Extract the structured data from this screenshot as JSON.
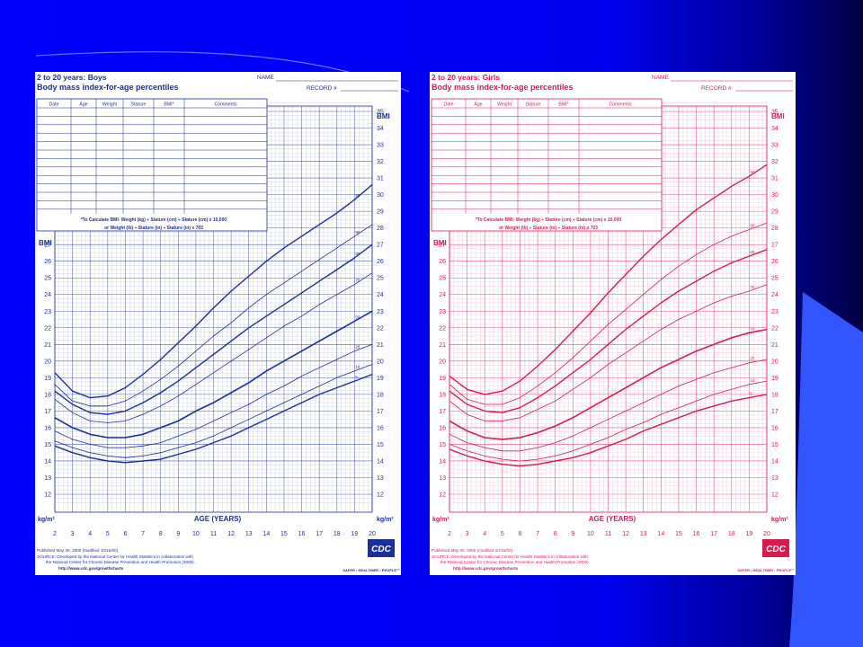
{
  "slide": {
    "background_color": "#0000ff",
    "accent_color": "#3355ff"
  },
  "chart_data": [
    {
      "type": "line",
      "title": "2 to 20 years: Boys",
      "subtitle": "Body mass index-for-age percentiles",
      "color": "#1a2f9a",
      "name_label": "NAME",
      "record_label": "RECORD #",
      "table_headers": [
        "Date",
        "Age",
        "Weight",
        "Stature",
        "BMI*",
        "Comments"
      ],
      "bmi_note_1": "*To Calculate BMI: Weight (kg) ÷ Stature (cm) ÷ Stature (cm) x 10,000",
      "bmi_note_2": "or Weight (lb) ÷ Stature (in) ÷ Stature (in) x 703",
      "ylabel": "BMI",
      "unit_label": "kg/m²",
      "xlabel": "AGE (YEARS)",
      "xlim": [
        2,
        20
      ],
      "ylim": [
        12,
        35
      ],
      "x_ticks": [
        2,
        3,
        4,
        5,
        6,
        7,
        8,
        9,
        10,
        11,
        12,
        13,
        14,
        15,
        16,
        17,
        18,
        19,
        20
      ],
      "x": [
        2,
        3,
        4,
        5,
        6,
        7,
        8,
        9,
        10,
        11,
        12,
        13,
        14,
        15,
        16,
        17,
        18,
        19,
        20
      ],
      "series": [
        {
          "name": "95",
          "values": [
            19.3,
            18.2,
            17.8,
            17.9,
            18.4,
            19.2,
            20.1,
            21.1,
            22.1,
            23.2,
            24.2,
            25.1,
            26.0,
            26.8,
            27.5,
            28.2,
            28.9,
            29.7,
            30.6
          ]
        },
        {
          "name": "90",
          "values": [
            18.6,
            17.6,
            17.3,
            17.3,
            17.6,
            18.2,
            18.9,
            19.7,
            20.6,
            21.5,
            22.3,
            23.2,
            24.0,
            24.7,
            25.4,
            26.1,
            26.8,
            27.5,
            28.2
          ]
        },
        {
          "name": "85",
          "values": [
            18.2,
            17.4,
            16.9,
            16.8,
            17.0,
            17.5,
            18.1,
            18.8,
            19.6,
            20.4,
            21.2,
            22.0,
            22.7,
            23.4,
            24.1,
            24.8,
            25.5,
            26.2,
            27.0
          ]
        },
        {
          "name": "75",
          "values": [
            17.7,
            16.9,
            16.4,
            16.3,
            16.4,
            16.8,
            17.3,
            17.9,
            18.6,
            19.3,
            20.0,
            20.7,
            21.4,
            22.1,
            22.7,
            23.4,
            24.0,
            24.6,
            25.3
          ]
        },
        {
          "name": "50",
          "values": [
            16.6,
            16.0,
            15.6,
            15.4,
            15.4,
            15.6,
            16.0,
            16.4,
            17.0,
            17.5,
            18.1,
            18.7,
            19.4,
            20.0,
            20.6,
            21.2,
            21.8,
            22.4,
            23.0
          ]
        },
        {
          "name": "25",
          "values": [
            15.8,
            15.3,
            15.0,
            14.8,
            14.8,
            14.9,
            15.1,
            15.5,
            15.9,
            16.4,
            16.9,
            17.4,
            18.0,
            18.5,
            19.1,
            19.6,
            20.1,
            20.6,
            21.0
          ]
        },
        {
          "name": "10",
          "values": [
            15.2,
            14.8,
            14.5,
            14.3,
            14.2,
            14.3,
            14.5,
            14.8,
            15.1,
            15.5,
            16.0,
            16.5,
            17.0,
            17.5,
            18.0,
            18.5,
            19.0,
            19.4,
            19.8
          ]
        },
        {
          "name": "5",
          "values": [
            14.9,
            14.5,
            14.2,
            14.0,
            13.9,
            14.0,
            14.1,
            14.4,
            14.7,
            15.1,
            15.5,
            16.0,
            16.5,
            17.0,
            17.5,
            18.0,
            18.4,
            18.8,
            19.2
          ]
        }
      ],
      "published": "Published May 30, 2000 (modified 10/16/00).",
      "source_1": "SOURCE: Developed by the National Center for Health Statistics in collaboration with",
      "source_2": "the National Center for Chronic Disease Prevention and Health Promotion (2000).",
      "source_3": "http://www.cdc.gov/growthcharts",
      "logo_text": "CDC",
      "tagline": "SAFER • HEALTHIER • PEOPLE™"
    },
    {
      "type": "line",
      "title": "2 to 20 years: Girls",
      "subtitle": "Body mass index-for-age percentiles",
      "color": "#d81b4f",
      "name_label": "NAME",
      "record_label": "RECORD #",
      "table_headers": [
        "Date",
        "Age",
        "Weight",
        "Stature",
        "BMI*",
        "Comments"
      ],
      "bmi_note_1": "*To Calculate BMI: Weight (kg) ÷ Stature (cm) ÷ Stature (cm) x 10,000",
      "bmi_note_2": "or Weight (lb) ÷ Stature (in) ÷ Stature (in) x 703",
      "ylabel": "BMI",
      "unit_label": "kg/m²",
      "xlabel": "AGE (YEARS)",
      "xlim": [
        2,
        20
      ],
      "ylim": [
        12,
        35
      ],
      "x_ticks": [
        2,
        3,
        4,
        5,
        6,
        7,
        8,
        9,
        10,
        11,
        12,
        13,
        14,
        15,
        16,
        17,
        18,
        19,
        20
      ],
      "x": [
        2,
        3,
        4,
        5,
        6,
        7,
        8,
        9,
        10,
        11,
        12,
        13,
        14,
        15,
        16,
        17,
        18,
        19,
        20
      ],
      "series": [
        {
          "name": "95",
          "values": [
            19.1,
            18.3,
            18.0,
            18.2,
            18.8,
            19.7,
            20.7,
            21.8,
            22.9,
            24.1,
            25.2,
            26.3,
            27.3,
            28.2,
            29.1,
            29.8,
            30.5,
            31.1,
            31.8
          ]
        },
        {
          "name": "90",
          "values": [
            18.6,
            17.7,
            17.4,
            17.4,
            17.8,
            18.5,
            19.3,
            20.2,
            21.2,
            22.2,
            23.1,
            24.0,
            24.9,
            25.7,
            26.4,
            27.0,
            27.5,
            27.9,
            28.3
          ]
        },
        {
          "name": "85",
          "values": [
            18.2,
            17.4,
            17.0,
            16.9,
            17.2,
            17.8,
            18.5,
            19.3,
            20.1,
            21.0,
            21.9,
            22.7,
            23.5,
            24.2,
            24.8,
            25.4,
            25.9,
            26.3,
            26.7
          ]
        },
        {
          "name": "75",
          "values": [
            17.6,
            16.8,
            16.4,
            16.4,
            16.6,
            17.1,
            17.6,
            18.3,
            19.0,
            19.8,
            20.5,
            21.2,
            21.9,
            22.5,
            23.0,
            23.5,
            23.9,
            24.2,
            24.6
          ]
        },
        {
          "name": "50",
          "values": [
            16.4,
            15.8,
            15.4,
            15.3,
            15.4,
            15.7,
            16.1,
            16.6,
            17.2,
            17.8,
            18.4,
            19.0,
            19.6,
            20.1,
            20.6,
            21.0,
            21.4,
            21.7,
            21.9
          ]
        },
        {
          "name": "25",
          "values": [
            15.6,
            15.1,
            14.8,
            14.6,
            14.6,
            14.8,
            15.1,
            15.5,
            16.0,
            16.5,
            17.0,
            17.5,
            18.0,
            18.5,
            18.9,
            19.3,
            19.6,
            19.9,
            20.1
          ]
        },
        {
          "name": "10",
          "values": [
            15.0,
            14.6,
            14.3,
            14.1,
            14.0,
            14.1,
            14.3,
            14.6,
            15.0,
            15.4,
            15.9,
            16.3,
            16.8,
            17.2,
            17.6,
            18.0,
            18.3,
            18.6,
            18.8
          ]
        },
        {
          "name": "5",
          "values": [
            14.7,
            14.3,
            14.0,
            13.8,
            13.7,
            13.8,
            14.0,
            14.2,
            14.5,
            14.9,
            15.3,
            15.8,
            16.2,
            16.6,
            17.0,
            17.3,
            17.6,
            17.8,
            18.0
          ]
        }
      ],
      "published": "Published May 30, 2000 (modified 10/16/00).",
      "source_1": "SOURCE: Developed by the National Center for Health Statistics in collaboration with",
      "source_2": "the National Center for Chronic Disease Prevention and Health Promotion (2000).",
      "source_3": "http://www.cdc.gov/growthcharts",
      "logo_text": "CDC",
      "tagline": "SAFER • HEALTHIER • PEOPLE™"
    }
  ]
}
